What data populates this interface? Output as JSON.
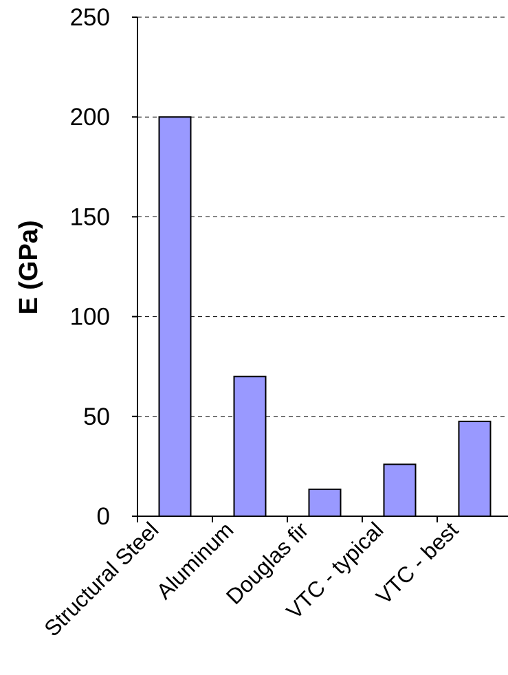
{
  "chart_data": {
    "type": "bar",
    "categories": [
      "Structural Steel",
      "Aluminum",
      "Douglas fir",
      "VTC - typical",
      "VTC - best"
    ],
    "values": [
      200,
      70,
      13.5,
      26,
      47.5
    ],
    "title": "",
    "xlabel": "",
    "ylabel": "E (GPa)",
    "ylim": [
      0,
      250
    ],
    "yticks": [
      0,
      50,
      100,
      150,
      200,
      250
    ],
    "grid": "horizontal dashed",
    "legend": "none"
  },
  "colors": {
    "bar_fill": "#9999ff",
    "bar_stroke": "#000000",
    "grid": "#000000",
    "axis": "#000000"
  }
}
